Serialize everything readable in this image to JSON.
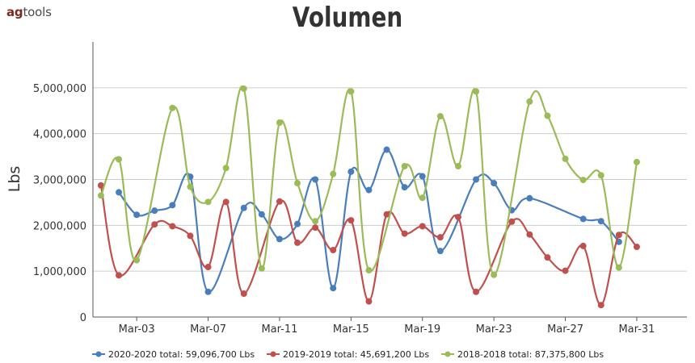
{
  "logo": {
    "prefix": "ag",
    "suffix": "tools"
  },
  "chart_data": {
    "type": "line",
    "title": "Volumen",
    "ylabel": "Lbs",
    "xlabel": "",
    "ylim": [
      0,
      6000000
    ],
    "yticks": [
      0,
      1000000,
      2000000,
      3000000,
      4000000,
      5000000
    ],
    "ytick_labels": [
      "0",
      "1,000,000",
      "2,000,000",
      "3,000,000",
      "4,000,000",
      "5,000,000"
    ],
    "xlim": [
      1,
      34
    ],
    "xticks": [
      3,
      7,
      11,
      15,
      19,
      23,
      27,
      31
    ],
    "xtick_labels": [
      "Mar-03",
      "Mar-07",
      "Mar-11",
      "Mar-15",
      "Mar-19",
      "Mar-23",
      "Mar-27",
      "Mar-31"
    ],
    "grid": "horizontal",
    "legend_position": "bottom",
    "series": [
      {
        "name": "2020-2020 total: 59,096,700 Lbs",
        "color": "#4a7ebb",
        "points": [
          [
            2,
            2720000
          ],
          [
            3,
            2230000
          ],
          [
            4,
            2320000
          ],
          [
            5,
            2440000
          ],
          [
            6,
            3060000
          ],
          [
            7,
            550000
          ],
          [
            9,
            2380000
          ],
          [
            10,
            2240000
          ],
          [
            11,
            1700000
          ],
          [
            12,
            2030000
          ],
          [
            13,
            3000000
          ],
          [
            14,
            630000
          ],
          [
            15,
            3170000
          ],
          [
            16,
            2770000
          ],
          [
            17,
            3650000
          ],
          [
            18,
            2830000
          ],
          [
            19,
            3070000
          ],
          [
            20,
            1440000
          ],
          [
            22,
            3000000
          ],
          [
            23,
            2920000
          ],
          [
            24,
            2330000
          ],
          [
            25,
            2590000
          ],
          [
            28,
            2140000
          ],
          [
            29,
            2090000
          ],
          [
            30,
            1640000
          ]
        ]
      },
      {
        "name": "2019-2019 total: 45,691,200 Lbs",
        "color": "#c0504d",
        "points": [
          [
            1,
            2870000
          ],
          [
            2,
            910000
          ],
          [
            4,
            2020000
          ],
          [
            5,
            1980000
          ],
          [
            6,
            1770000
          ],
          [
            7,
            1090000
          ],
          [
            8,
            2510000
          ],
          [
            9,
            510000
          ],
          [
            11,
            2520000
          ],
          [
            12,
            1620000
          ],
          [
            13,
            1950000
          ],
          [
            14,
            1460000
          ],
          [
            15,
            2110000
          ],
          [
            16,
            340000
          ],
          [
            17,
            2240000
          ],
          [
            18,
            1820000
          ],
          [
            19,
            1980000
          ],
          [
            20,
            1740000
          ],
          [
            21,
            2180000
          ],
          [
            22,
            550000
          ],
          [
            24,
            2080000
          ],
          [
            25,
            1800000
          ],
          [
            26,
            1300000
          ],
          [
            27,
            1010000
          ],
          [
            28,
            1550000
          ],
          [
            29,
            260000
          ],
          [
            30,
            1790000
          ],
          [
            31,
            1530000
          ]
        ]
      },
      {
        "name": "2018-2018 total: 87,375,800 Lbs",
        "color": "#9bbb59",
        "points": [
          [
            1,
            2650000
          ],
          [
            2,
            3440000
          ],
          [
            3,
            1240000
          ],
          [
            5,
            4560000
          ],
          [
            6,
            2840000
          ],
          [
            7,
            2510000
          ],
          [
            8,
            3250000
          ],
          [
            9,
            4980000
          ],
          [
            10,
            1060000
          ],
          [
            11,
            4240000
          ],
          [
            12,
            2920000
          ],
          [
            13,
            2090000
          ],
          [
            14,
            3120000
          ],
          [
            15,
            4920000
          ],
          [
            16,
            1020000
          ],
          [
            18,
            3290000
          ],
          [
            19,
            2600000
          ],
          [
            20,
            4380000
          ],
          [
            21,
            3290000
          ],
          [
            22,
            4920000
          ],
          [
            23,
            920000
          ],
          [
            25,
            4700000
          ],
          [
            26,
            4390000
          ],
          [
            27,
            3450000
          ],
          [
            28,
            2990000
          ],
          [
            29,
            3090000
          ],
          [
            30,
            1080000
          ],
          [
            31,
            3380000
          ]
        ]
      }
    ]
  }
}
